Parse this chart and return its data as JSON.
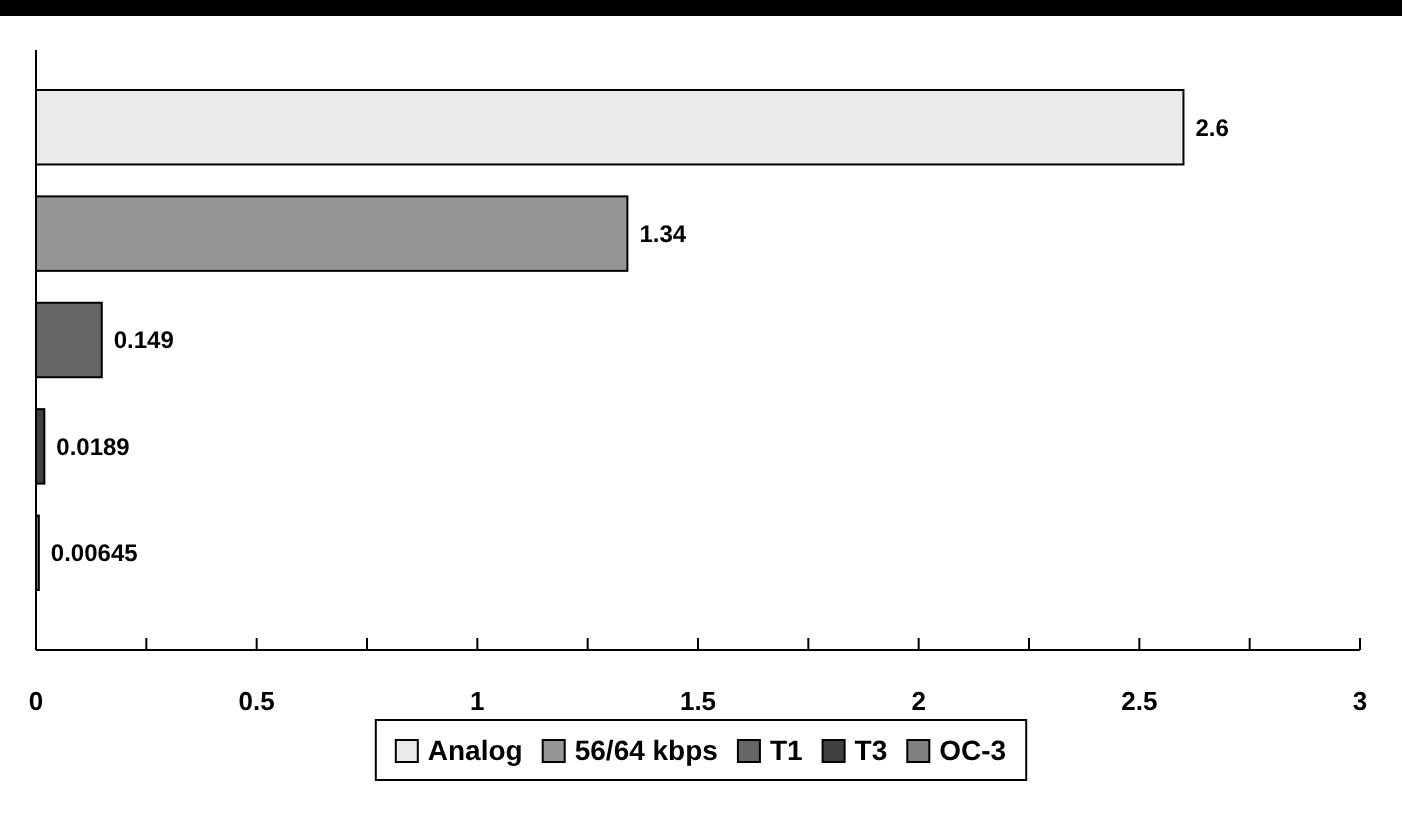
{
  "chart_data": {
    "type": "bar",
    "orientation": "horizontal",
    "categories": [
      null,
      null,
      null,
      null,
      null
    ],
    "series": [
      {
        "name": "Analog",
        "color": "#eaeaea",
        "values": [
          2.6,
          null,
          null,
          null,
          null
        ]
      },
      {
        "name": "56/64 kbps",
        "color": "#969696",
        "values": [
          null,
          1.34,
          null,
          null,
          null
        ]
      },
      {
        "name": "T1",
        "color": "#666666",
        "values": [
          null,
          null,
          0.149,
          null,
          null
        ]
      },
      {
        "name": "T3",
        "color": "#404040",
        "values": [
          null,
          null,
          null,
          0.0189,
          null
        ]
      },
      {
        "name": "OC-3",
        "color": "#808080",
        "values": [
          null,
          null,
          null,
          null,
          0.00645
        ]
      }
    ],
    "xlim": [
      0,
      3
    ],
    "xticks": [
      0,
      {
        "value": 0.25,
        "label": null
      },
      0.5,
      {
        "value": 0.75,
        "label": null
      },
      1,
      {
        "value": 1.25,
        "label": null
      },
      1.5,
      {
        "value": 1.75,
        "label": null
      },
      2,
      {
        "value": 2.25,
        "label": null
      },
      2.5,
      {
        "value": 2.75,
        "label": null
      },
      3
    ],
    "data_labels": true,
    "legend": "bottom",
    "grid": false
  }
}
